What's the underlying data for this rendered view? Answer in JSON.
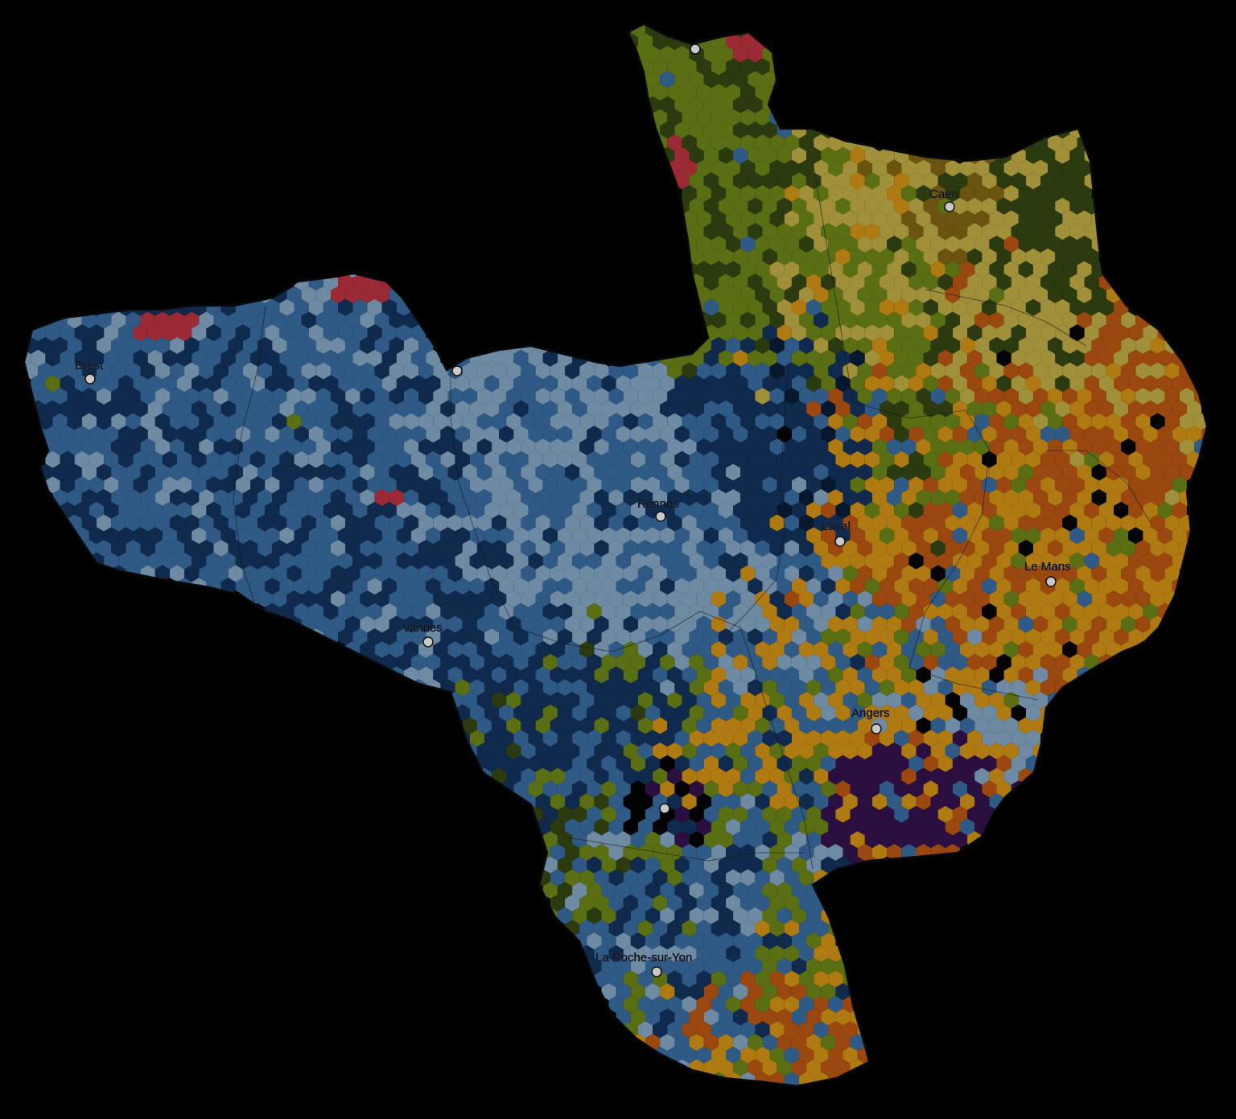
{
  "map": {
    "palette": {
      "background": "#000000",
      "light_blue": "#6f8aa3",
      "mid_blue": "#2f5a86",
      "dark_blue": "#0f2a4c",
      "navy": "#07172d",
      "olive_green": "#5a6f14",
      "dark_olive": "#2c3a10",
      "khaki": "#a0903a",
      "brown": "#6b5410",
      "amber": "#b07a12",
      "orange_brown": "#9a4810",
      "red": "#9b2a35",
      "purple": "#2a0f40",
      "black": "#030303",
      "city_dot": "#c8c8c8"
    },
    "cities": [
      {
        "name": "Brest"
      },
      {
        "name": "Caen"
      },
      {
        "name": "Rennes"
      },
      {
        "name": "Laval"
      },
      {
        "name": "Le Mans"
      },
      {
        "name": "Vannes"
      },
      {
        "name": "Angers"
      },
      {
        "name": "La Roche-sur-Yon"
      }
    ],
    "unlabeled_city_count": 3
  }
}
